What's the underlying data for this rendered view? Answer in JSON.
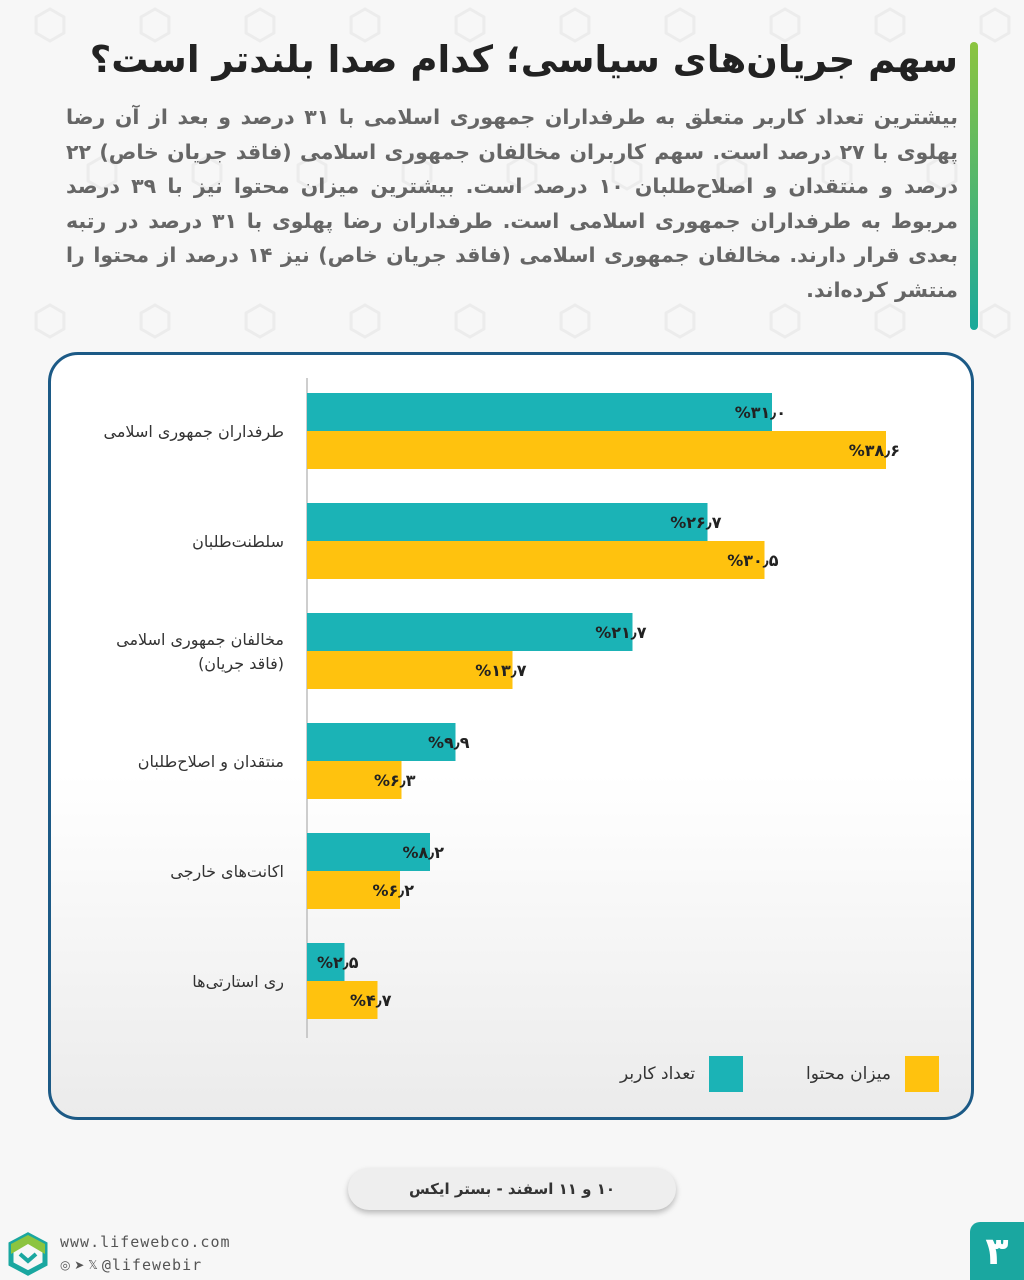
{
  "header": {
    "title": "سهم جریان‌های سیاسی؛ کدام صدا بلندتر است؟",
    "description": "بیشترین تعداد کاربر متعلق به طرفداران جمهوری اسلامی با ۳۱ درصد و بعد از آن رضا پهلوی با ۲۷ درصد است. سهم کاربران مخالفان جمهوری اسلامی (فاقد جریان خاص) ۲۲ درصد و منتقدان و اصلاح‌طلبان ۱۰ درصد است. بیشترین میزان محتوا نیز با ۳۹ درصد مربوط به طرفداران جمهوری اسلامی است. طرفداران رضا پهلوی با ۳۱ درصد در رتبه بعدی قرار دارند. مخالفان جمهوری اسلامی (فاقد جریان خاص) نیز ۱۴ درصد از محتوا را منتشر کرده‌اند."
  },
  "chart_data": {
    "type": "bar",
    "orientation": "horizontal",
    "categories": [
      [
        "طرفداران جمهوری اسلامی"
      ],
      [
        "سلطنت‌طلبان"
      ],
      [
        "مخالفان جمهوری اسلامی",
        "(فاقد جریان)"
      ],
      [
        "منتقدان و اصلاح‌طلبان"
      ],
      [
        "اکانت‌های خارجی"
      ],
      [
        "ری استارتی‌ها"
      ]
    ],
    "series": [
      {
        "name": "تعداد کاربر",
        "color": "#1bb3b6",
        "values": [
          31.0,
          26.7,
          21.7,
          9.9,
          8.2,
          2.5
        ],
        "labels": [
          "%۳۱٫۰",
          "%۲۶٫۷",
          "%۲۱٫۷",
          "%۹٫۹",
          "%۸٫۲",
          "%۲٫۵"
        ]
      },
      {
        "name": "میزان محتوا",
        "color": "#ffc20e",
        "values": [
          38.6,
          30.5,
          13.7,
          6.3,
          6.2,
          4.7
        ],
        "labels": [
          "%۳۸٫۶",
          "%۳۰٫۵",
          "%۱۳٫۷",
          "%۶٫۳",
          "%۶٫۲",
          "%۴٫۷"
        ]
      }
    ],
    "xlim": [
      0,
      40
    ],
    "grid": false,
    "legend_position": "bottom"
  },
  "footer": {
    "date": "۱۰ و ۱۱ اسفند - بستر ایکس",
    "website": "www.lifewebco.com",
    "social_icons": "◎ ➤ 𝕏",
    "handle": "@lifewebir",
    "page_number": "۳"
  },
  "colors": {
    "accent_green": "#8cc43f",
    "accent_teal": "#1aa7a0",
    "card_border": "#1c5a86"
  }
}
